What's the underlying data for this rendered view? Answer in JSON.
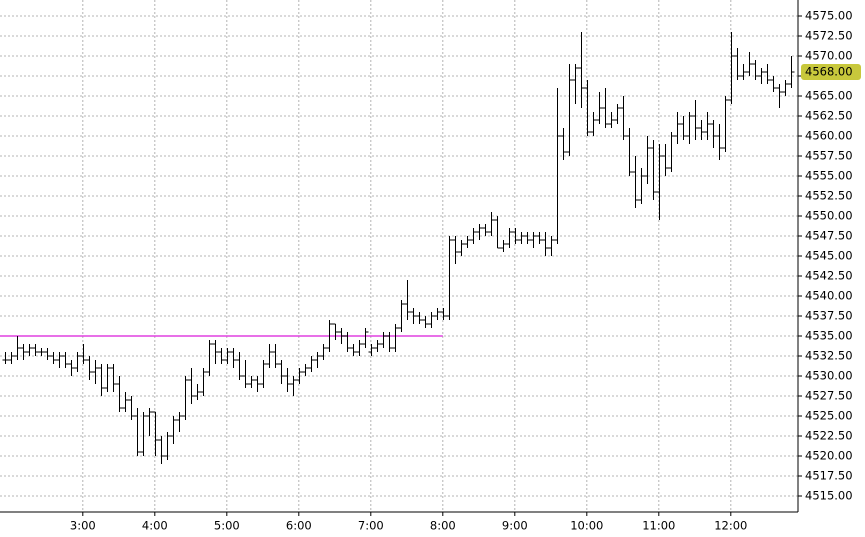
{
  "chart_data": {
    "type": "ohlc",
    "color": "#000000",
    "grid": true,
    "grid_color": "#b4b4b4",
    "x": [
      115,
      120,
      125,
      130,
      135,
      140,
      145,
      150,
      155,
      160,
      165,
      170,
      175,
      180,
      185,
      190,
      195,
      200,
      205,
      210,
      215,
      220,
      225,
      230,
      235,
      240,
      245,
      250,
      255,
      260,
      265,
      270,
      275,
      280,
      285,
      290,
      295,
      300,
      305,
      310,
      315,
      320,
      325,
      330,
      335,
      340,
      345,
      350,
      355,
      360,
      365,
      370,
      375,
      380,
      385,
      390,
      395,
      400,
      405,
      410,
      415,
      420,
      425,
      430,
      435,
      440,
      445,
      450,
      455,
      460,
      465,
      470,
      475,
      480,
      485,
      490,
      495,
      500,
      505,
      510,
      515,
      520,
      525,
      530,
      535,
      540,
      545,
      550,
      555,
      560,
      565,
      570,
      575,
      580,
      585,
      590,
      595,
      600,
      605,
      610,
      615,
      620,
      625,
      630,
      635,
      640,
      645,
      650,
      655,
      660,
      665,
      670,
      675,
      680,
      685,
      690,
      695,
      700,
      705,
      710,
      715,
      720,
      725,
      730,
      735,
      740,
      745,
      750,
      755,
      760,
      765,
      770
    ],
    "open": [
      4532,
      4532,
      4532.5,
      4533.5,
      4533,
      4533.5,
      4533,
      4533,
      4532.5,
      4532,
      4532.5,
      4531.5,
      4531,
      4532.5,
      4532,
      4530.5,
      4531,
      4528.5,
      4531,
      4529,
      4526,
      4527,
      4525,
      4520.5,
      4525,
      4525.5,
      4522,
      4520,
      4522.5,
      4524.5,
      4525,
      4529.5,
      4527.5,
      4528,
      4530.5,
      4534,
      4533,
      4532,
      4533,
      4532,
      4530,
      4529,
      4529.5,
      4529,
      4531.5,
      4533,
      4531.5,
      4530,
      4529,
      4529.5,
      4530.5,
      4531,
      4532,
      4532.5,
      4533.5,
      4536.5,
      4535.5,
      4535,
      4533.5,
      4533,
      4534,
      4533,
      4533.5,
      4534,
      4535,
      4533.5,
      4536,
      4539,
      4538,
      4537.5,
      4537,
      4536.5,
      4537.5,
      4538,
      4537.5,
      4547,
      4545.5,
      4546.5,
      4547,
      4548,
      4548.5,
      4548,
      4549.5,
      4546,
      4546.5,
      4548,
      4547,
      4547.5,
      4547,
      4547.5,
      4547,
      4546,
      4547,
      4560,
      4558,
      4567,
      4568.5,
      4566,
      4560.5,
      4562,
      4563.5,
      4561.5,
      4562,
      4563.5,
      4560,
      4555.5,
      4552,
      4555,
      4558.5,
      4553,
      4557.5,
      4556,
      4560,
      4561.5,
      4560,
      4562.5,
      4561,
      4560.5,
      4561.5,
      4560,
      4558.5,
      4564.5,
      4570,
      4567.5,
      4568,
      4569,
      4567.5,
      4568,
      4567,
      4566,
      4565.5,
      4566.5
    ],
    "high": [
      4533,
      4533,
      4535,
      4534,
      4534,
      4534,
      4533.5,
      4533.5,
      4533,
      4533,
      4533,
      4532,
      4533,
      4534,
      4532.5,
      4532,
      4531.5,
      4531.5,
      4531.5,
      4530,
      4528,
      4527.5,
      4526,
      4525.5,
      4526,
      4525.5,
      4522.5,
      4523,
      4525,
      4525.5,
      4530,
      4531,
      4529,
      4531,
      4534.5,
      4534.5,
      4533.5,
      4533.5,
      4533.5,
      4533,
      4532,
      4530,
      4530,
      4532,
      4534,
      4534,
      4532,
      4531,
      4530,
      4531,
      4531.5,
      4532.5,
      4533,
      4534,
      4537,
      4536.5,
      4536,
      4535.5,
      4534,
      4534.5,
      4536,
      4534,
      4534.5,
      4535.5,
      4535.5,
      4536.5,
      4539.5,
      4542,
      4538.5,
      4538,
      4537.5,
      4538,
      4538.5,
      4538.5,
      4547.5,
      4547.5,
      4547,
      4547.5,
      4548.5,
      4549,
      4549,
      4550.5,
      4550,
      4547,
      4548.5,
      4548.5,
      4548,
      4548,
      4548,
      4548,
      4548,
      4547.5,
      4566,
      4561,
      4569,
      4569,
      4573,
      4567,
      4563,
      4565.5,
      4566,
      4563,
      4564,
      4565,
      4561,
      4557.5,
      4556,
      4560,
      4559.5,
      4559,
      4559,
      4560.5,
      4563,
      4562.5,
      4563,
      4564.5,
      4562,
      4563,
      4562,
      4561.5,
      4565,
      4573,
      4571,
      4569,
      4570.5,
      4569.5,
      4568.5,
      4569,
      4567.5,
      4566.5,
      4567,
      4570
    ],
    "low": [
      4531.5,
      4531.5,
      4532,
      4532,
      4532.5,
      4532.5,
      4532.5,
      4532,
      4531.5,
      4531,
      4531,
      4530,
      4530.5,
      4531.5,
      4529.5,
      4529,
      4527.5,
      4528,
      4528,
      4525.5,
      4525.5,
      4524.5,
      4520,
      4520,
      4522.5,
      4520,
      4519,
      4519.5,
      4521.5,
      4523,
      4524.5,
      4526.5,
      4527,
      4527.5,
      4530,
      4531.5,
      4531.5,
      4531.5,
      4531,
      4529.5,
      4528.5,
      4528.5,
      4528,
      4528.5,
      4531,
      4531,
      4529,
      4528,
      4527.5,
      4529,
      4530,
      4530.5,
      4531,
      4532,
      4533,
      4534.5,
      4534,
      4533,
      4532.5,
      4532.5,
      4533.5,
      4532.5,
      4533,
      4533.5,
      4533,
      4533,
      4535.5,
      4537,
      4536.5,
      4536.5,
      4536,
      4536,
      4537,
      4537,
      4537,
      4544,
      4545,
      4546,
      4546.5,
      4547,
      4547.5,
      4547.5,
      4546,
      4545.5,
      4546,
      4546.5,
      4546.5,
      4546.5,
      4546,
      4546.5,
      4545,
      4545,
      4546.5,
      4557,
      4557.5,
      4564,
      4563.5,
      4560,
      4560,
      4561.5,
      4561,
      4561,
      4561.5,
      4559.5,
      4555,
      4551,
      4551.5,
      4554,
      4552,
      4549.5,
      4555,
      4555.5,
      4559,
      4559.5,
      4559,
      4559.5,
      4559.5,
      4559.5,
      4558.5,
      4557,
      4558,
      4564,
      4567,
      4567,
      4567.5,
      4567,
      4566.5,
      4566.5,
      4565.5,
      4563.5,
      4565,
      4566
    ],
    "close": [
      4532,
      4532.5,
      4533.5,
      4533,
      4533.5,
      4533,
      4533,
      4532.5,
      4532,
      4532.5,
      4531.5,
      4531,
      4532.5,
      4532,
      4530.5,
      4531,
      4528.5,
      4531,
      4529,
      4526,
      4527,
      4525,
      4520.5,
      4525,
      4525.5,
      4522,
      4520,
      4522.5,
      4524.5,
      4525,
      4529.5,
      4527.5,
      4528,
      4530.5,
      4534,
      4533,
      4532,
      4533,
      4532,
      4530,
      4529,
      4529.5,
      4529,
      4531.5,
      4533,
      4531.5,
      4530,
      4529,
      4529.5,
      4530.5,
      4531,
      4532,
      4532.5,
      4533.5,
      4536.5,
      4535.5,
      4535,
      4533.5,
      4533,
      4534,
      4535.5,
      4533.5,
      4534,
      4535,
      4533.5,
      4536,
      4539,
      4538,
      4537.5,
      4537,
      4536.5,
      4537.5,
      4538,
      4537.5,
      4547,
      4545.5,
      4546.5,
      4547,
      4548,
      4548.5,
      4548,
      4549.5,
      4546,
      4546.5,
      4548,
      4547,
      4547.5,
      4547,
      4547.5,
      4547,
      4546,
      4547,
      4560,
      4558,
      4567,
      4568.5,
      4566,
      4560.5,
      4562,
      4563.5,
      4561.5,
      4562,
      4563.5,
      4560,
      4555.5,
      4552,
      4555,
      4558.5,
      4553,
      4557.5,
      4556,
      4560,
      4561.5,
      4560,
      4562.5,
      4561,
      4560.5,
      4561.5,
      4560,
      4558.5,
      4564.5,
      4570,
      4567.5,
      4568,
      4569,
      4567.5,
      4568,
      4567,
      4566,
      4565.5,
      4566.5,
      4568
    ],
    "xlim": [
      111,
      776
    ],
    "xticks": [
      {
        "value": 180,
        "label": "3:00"
      },
      {
        "value": 240,
        "label": "4:00"
      },
      {
        "value": 300,
        "label": "5:00"
      },
      {
        "value": 360,
        "label": "6:00"
      },
      {
        "value": 420,
        "label": "7:00"
      },
      {
        "value": 480,
        "label": "8:00"
      },
      {
        "value": 540,
        "label": "9:00"
      },
      {
        "value": 600,
        "label": "10:00"
      },
      {
        "value": 660,
        "label": "11:00"
      },
      {
        "value": 720,
        "label": "12:00"
      }
    ],
    "ylim": [
      4513,
      4577
    ],
    "yticks": [
      {
        "value": 4515,
        "label": "4515.00"
      },
      {
        "value": 4517.5,
        "label": "4517.50"
      },
      {
        "value": 4520,
        "label": "4520.00"
      },
      {
        "value": 4522.5,
        "label": "4522.50"
      },
      {
        "value": 4525,
        "label": "4525.00"
      },
      {
        "value": 4527.5,
        "label": "4527.50"
      },
      {
        "value": 4530,
        "label": "4530.00"
      },
      {
        "value": 4532.5,
        "label": "4532.50"
      },
      {
        "value": 4535,
        "label": "4535.00"
      },
      {
        "value": 4537.5,
        "label": "4537.50"
      },
      {
        "value": 4540,
        "label": "4540.00"
      },
      {
        "value": 4542.5,
        "label": "4542.50"
      },
      {
        "value": 4545,
        "label": "4545.00"
      },
      {
        "value": 4547.5,
        "label": "4547.50"
      },
      {
        "value": 4550,
        "label": "4550.00"
      },
      {
        "value": 4552.5,
        "label": "4552.50"
      },
      {
        "value": 4555,
        "label": "4555.00"
      },
      {
        "value": 4557.5,
        "label": "4557.50"
      },
      {
        "value": 4560,
        "label": "4560.00"
      },
      {
        "value": 4562.5,
        "label": "4562.50"
      },
      {
        "value": 4565,
        "label": "4565.00"
      },
      {
        "value": 4567.5,
        "label": "4567.50"
      },
      {
        "value": 4570,
        "label": "4570.00"
      },
      {
        "value": 4572.5,
        "label": "4572.50"
      },
      {
        "value": 4575,
        "label": "4575.00"
      }
    ],
    "reference_line": {
      "value": 4535,
      "x_end": 480,
      "color": "#e040e0"
    },
    "last_price": {
      "value": 4568,
      "label": "4568.00",
      "color": "#c8c83c"
    }
  }
}
